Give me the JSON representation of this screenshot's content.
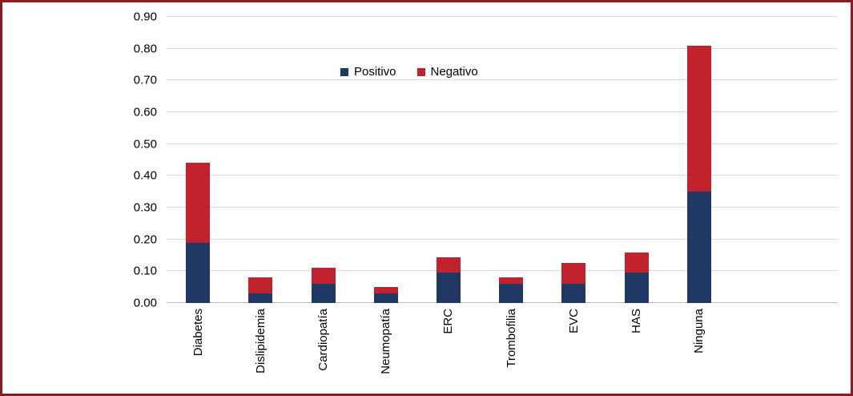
{
  "chart_data": {
    "type": "bar",
    "stacked": true,
    "title": "",
    "xlabel": "",
    "ylabel": "",
    "categories": [
      "Diabetes",
      "Dislipidemia",
      "Cardiopatía",
      "Neumopatía",
      "ERC",
      "Trombofilia",
      "EVC",
      "HAS",
      "Ninguna"
    ],
    "series": [
      {
        "name": "Positivo",
        "color": "#1f3864",
        "values": [
          0.19,
          0.03,
          0.06,
          0.03,
          0.095,
          0.06,
          0.06,
          0.095,
          0.35
        ]
      },
      {
        "name": "Negativo",
        "color": "#c0232c",
        "values": [
          0.25,
          0.05,
          0.05,
          0.02,
          0.05,
          0.02,
          0.065,
          0.065,
          0.46
        ]
      }
    ],
    "stack_totals": [
      0.44,
      0.08,
      0.11,
      0.05,
      0.145,
      0.08,
      0.125,
      0.16,
      0.81
    ],
    "ylim": [
      0,
      0.9
    ],
    "ytick_step": 0.1,
    "ytick_labels": [
      "0.00",
      "0.10",
      "0.20",
      "0.30",
      "0.40",
      "0.50",
      "0.60",
      "0.70",
      "0.80",
      "0.90"
    ],
    "grid": true,
    "legend_position": "top-center",
    "legend_labels": [
      "Positivo",
      "Negativo"
    ]
  },
  "colors": {
    "frame_border": "#8e1b21",
    "gridline": "#d9d9d9",
    "baseline": "#bfbfbf",
    "positivo": "#1f3864",
    "negativo": "#c0232c",
    "text": "#000000",
    "background": "#ffffff"
  }
}
